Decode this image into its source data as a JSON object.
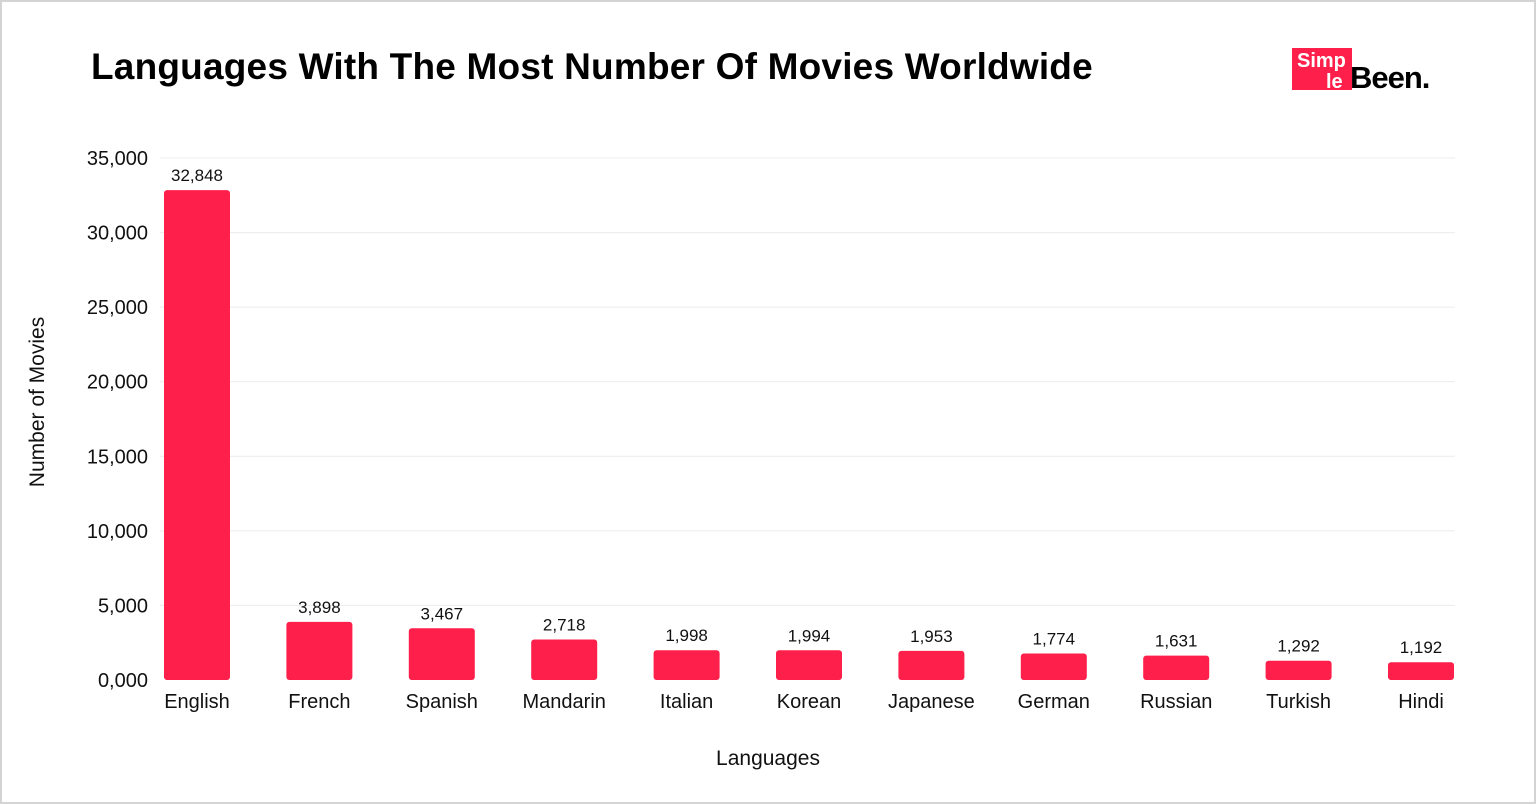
{
  "logo": {
    "text": "SimpleBeen.",
    "part1": "Simp",
    "part2": "le",
    "part3": "Been.",
    "accent": "#ff1f4b"
  },
  "chart_data": {
    "type": "bar",
    "title": "Languages With The Most Number Of Movies Worldwide",
    "xlabel": "Languages",
    "ylabel": "Number of Movies",
    "categories": [
      "English",
      "French",
      "Spanish",
      "Mandarin",
      "Italian",
      "Korean",
      "Japanese",
      "German",
      "Russian",
      "Turkish",
      "Hindi"
    ],
    "values": [
      32848,
      3898,
      3467,
      2718,
      1998,
      1994,
      1953,
      1774,
      1631,
      1292,
      1192
    ],
    "data_labels": [
      "32,848",
      "3,898",
      "3,467",
      "2,718",
      "1,998",
      "1,994",
      "1,953",
      "1,774",
      "1,631",
      "1,292",
      "1,192"
    ],
    "yticks": [
      0,
      5000,
      10000,
      15000,
      20000,
      25000,
      30000,
      35000
    ],
    "ytick_labels": [
      "0,000",
      "5,000",
      "10,000",
      "15,000",
      "20,000",
      "25,000",
      "30,000",
      "35,000"
    ],
    "ylim": [
      0,
      35000
    ],
    "grid": true,
    "bar_color": "#ff1f4b"
  }
}
